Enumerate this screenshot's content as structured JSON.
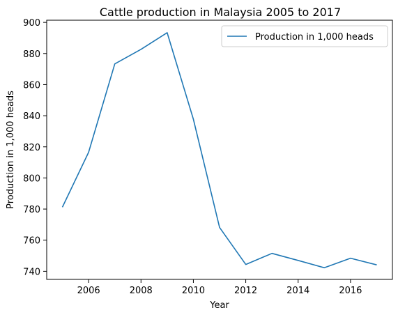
{
  "chart_data": {
    "type": "line",
    "title": "Cattle production in Malaysia 2005 to 2017",
    "xlabel": "Year",
    "ylabel": "Production in 1,000 heads",
    "x": [
      2005,
      2006,
      2007,
      2008,
      2009,
      2010,
      2011,
      2012,
      2013,
      2014,
      2015,
      2016,
      2017
    ],
    "series": [
      {
        "name": "Production in 1,000 heads",
        "color": "#1f77b4",
        "values": [
          781.2,
          816.5,
          873.3,
          882.7,
          893.4,
          837.8,
          768.2,
          744.4,
          751.5,
          747.0,
          742.3,
          748.4,
          744.1
        ]
      }
    ],
    "xlim": [
      2004.4,
      2017.6
    ],
    "ylim": [
      734.8,
      901.4
    ],
    "xticks": [
      2006,
      2008,
      2010,
      2012,
      2014,
      2016
    ],
    "yticks": [
      740,
      760,
      780,
      800,
      820,
      840,
      860,
      880,
      900
    ],
    "grid": false,
    "legend_position": "upper right"
  }
}
